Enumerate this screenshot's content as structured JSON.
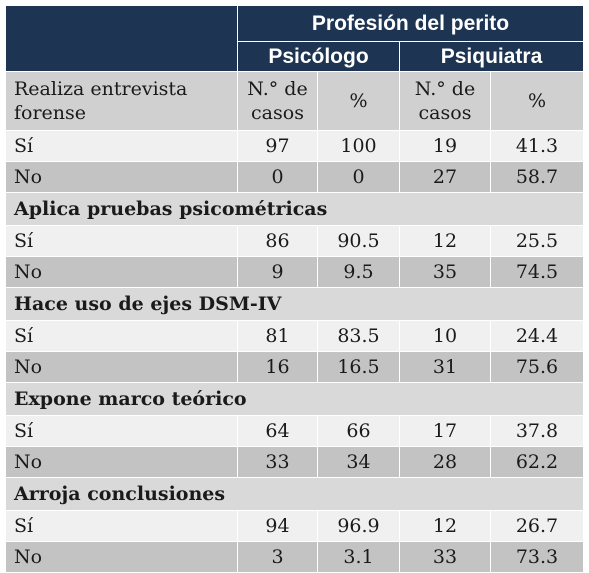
{
  "header": {
    "profesion": "Profesión del perito",
    "psicologo": "Psicólogo",
    "psiquiatra": "Psiquiatra"
  },
  "subheader": {
    "row_label": "Realiza entrevista forense",
    "cases": "N.° de casos",
    "pct": "%"
  },
  "rows": {
    "entrevista_si": {
      "label": "Sí",
      "v1": "97",
      "v2": "100",
      "v3": "19",
      "v4": "41.3"
    },
    "entrevista_no": {
      "label": "No",
      "v1": "0",
      "v2": "0",
      "v3": "27",
      "v4": "58.7"
    },
    "pruebas_title": "Aplica pruebas psicométricas",
    "pruebas_si": {
      "label": "Sí",
      "v1": "86",
      "v2": "90.5",
      "v3": "12",
      "v4": "25.5"
    },
    "pruebas_no": {
      "label": "No",
      "v1": "9",
      "v2": "9.5",
      "v3": "35",
      "v4": "74.5"
    },
    "dsm_title": "Hace uso de ejes DSM-IV",
    "dsm_si": {
      "label": "Sí",
      "v1": "81",
      "v2": "83.5",
      "v3": "10",
      "v4": "24.4"
    },
    "dsm_no": {
      "label": "No",
      "v1": "16",
      "v2": "16.5",
      "v3": "31",
      "v4": "75.6"
    },
    "marco_title": "Expone marco teórico",
    "marco_si": {
      "label": "Sí",
      "v1": "64",
      "v2": "66",
      "v3": "17",
      "v4": "37.8"
    },
    "marco_no": {
      "label": "No",
      "v1": "33",
      "v2": "34",
      "v3": "28",
      "v4": "62.2"
    },
    "concl_title": "Arroja conclusiones",
    "concl_si": {
      "label": "Sí",
      "v1": "94",
      "v2": "96.9",
      "v3": "12",
      "v4": "26.7"
    },
    "concl_no": {
      "label": "No",
      "v1": "3",
      "v2": "3.1",
      "v3": "33",
      "v4": "73.3"
    }
  },
  "colors": {
    "header_bg": "#1d3452",
    "subheader_bg": "#d0d0d0",
    "section_bg": "#d9d9d9",
    "row_light": "#f0f0f0",
    "row_dark": "#c3c3c3"
  }
}
